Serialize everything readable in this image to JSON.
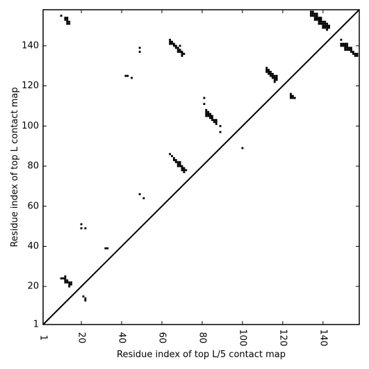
{
  "chart_data": {
    "type": "scatter",
    "title": "",
    "xlabel": "Residue index of top L/5 contact map",
    "ylabel": "Residue index of top L contact map",
    "xlim": [
      1,
      158
    ],
    "ylim": [
      1,
      158
    ],
    "xticks": [
      1,
      20,
      40,
      60,
      80,
      100,
      120,
      140
    ],
    "yticks": [
      1,
      20,
      40,
      60,
      80,
      100,
      120,
      140
    ],
    "grid": false,
    "diagonal_line": true,
    "marker_color": "#000000",
    "series": [
      {
        "points": [
          [
            10,
            24
          ],
          [
            11,
            24
          ],
          [
            12,
            24
          ],
          [
            12,
            23
          ],
          [
            13,
            23
          ],
          [
            13,
            22
          ],
          [
            12,
            22
          ],
          [
            14,
            22
          ],
          [
            14,
            21
          ],
          [
            15,
            22
          ],
          [
            15,
            21
          ],
          [
            14,
            20
          ],
          [
            12,
            25
          ],
          [
            21,
            15
          ],
          [
            22,
            14
          ],
          [
            22,
            13
          ],
          [
            20,
            51
          ],
          [
            20,
            49
          ],
          [
            22,
            49
          ],
          [
            32,
            39
          ],
          [
            33,
            39
          ],
          [
            49,
            66
          ],
          [
            51,
            64
          ],
          [
            64,
            86
          ],
          [
            65,
            85
          ],
          [
            66,
            84
          ],
          [
            66,
            83
          ],
          [
            67,
            83
          ],
          [
            67,
            82
          ],
          [
            68,
            82
          ],
          [
            68,
            81
          ],
          [
            69,
            82
          ],
          [
            69,
            81
          ],
          [
            69,
            80
          ],
          [
            70,
            80
          ],
          [
            70,
            79
          ],
          [
            71,
            79
          ],
          [
            71,
            78
          ],
          [
            72,
            78
          ],
          [
            71,
            77
          ],
          [
            70,
            78
          ],
          [
            68,
            80
          ],
          [
            81,
            114
          ],
          [
            81,
            111
          ],
          [
            82,
            108
          ],
          [
            82,
            107
          ],
          [
            82,
            106
          ],
          [
            82,
            105
          ],
          [
            83,
            107
          ],
          [
            83,
            106
          ],
          [
            83,
            105
          ],
          [
            84,
            106
          ],
          [
            84,
            105
          ],
          [
            84,
            104
          ],
          [
            85,
            105
          ],
          [
            85,
            104
          ],
          [
            85,
            103
          ],
          [
            86,
            103
          ],
          [
            86,
            102
          ],
          [
            87,
            103
          ],
          [
            87,
            102
          ],
          [
            87,
            101
          ],
          [
            89,
            100
          ],
          [
            89,
            97
          ],
          [
            100,
            89
          ],
          [
            42,
            125
          ],
          [
            43,
            125
          ],
          [
            45,
            124
          ],
          [
            49,
            139
          ],
          [
            49,
            137
          ],
          [
            64,
            143
          ],
          [
            64,
            142
          ],
          [
            64,
            141
          ],
          [
            65,
            142
          ],
          [
            65,
            141
          ],
          [
            66,
            141
          ],
          [
            66,
            140
          ],
          [
            67,
            140
          ],
          [
            67,
            139
          ],
          [
            68,
            139
          ],
          [
            68,
            138
          ],
          [
            68,
            137
          ],
          [
            69,
            140
          ],
          [
            69,
            138
          ],
          [
            69,
            137
          ],
          [
            70,
            137
          ],
          [
            70,
            136
          ],
          [
            70,
            135
          ],
          [
            71,
            136
          ],
          [
            112,
            129
          ],
          [
            112,
            128
          ],
          [
            112,
            127
          ],
          [
            113,
            128
          ],
          [
            113,
            127
          ],
          [
            113,
            126
          ],
          [
            114,
            127
          ],
          [
            114,
            126
          ],
          [
            114,
            125
          ],
          [
            115,
            126
          ],
          [
            115,
            125
          ],
          [
            115,
            124
          ],
          [
            116,
            125
          ],
          [
            116,
            124
          ],
          [
            116,
            123
          ],
          [
            116,
            122
          ],
          [
            117,
            125
          ],
          [
            117,
            124
          ],
          [
            117,
            123
          ],
          [
            124,
            116
          ],
          [
            124,
            115
          ],
          [
            124,
            114
          ],
          [
            125,
            115
          ],
          [
            125,
            114
          ],
          [
            126,
            114
          ],
          [
            10,
            155
          ],
          [
            12,
            154
          ],
          [
            12,
            153
          ],
          [
            13,
            154
          ],
          [
            13,
            153
          ],
          [
            13,
            152
          ],
          [
            13,
            151
          ],
          [
            14,
            152
          ],
          [
            14,
            151
          ],
          [
            134,
            157
          ],
          [
            134,
            156
          ],
          [
            134,
            155
          ],
          [
            135,
            157
          ],
          [
            135,
            156
          ],
          [
            135,
            155
          ],
          [
            136,
            156
          ],
          [
            136,
            155
          ],
          [
            136,
            154
          ],
          [
            136,
            153
          ],
          [
            137,
            156
          ],
          [
            137,
            155
          ],
          [
            137,
            154
          ],
          [
            137,
            153
          ],
          [
            138,
            154
          ],
          [
            138,
            153
          ],
          [
            138,
            152
          ],
          [
            138,
            151
          ],
          [
            139,
            154
          ],
          [
            139,
            153
          ],
          [
            139,
            152
          ],
          [
            139,
            151
          ],
          [
            140,
            152
          ],
          [
            140,
            151
          ],
          [
            140,
            150
          ],
          [
            140,
            149
          ],
          [
            141,
            152
          ],
          [
            141,
            151
          ],
          [
            141,
            150
          ],
          [
            141,
            149
          ],
          [
            142,
            151
          ],
          [
            142,
            150
          ],
          [
            142,
            149
          ],
          [
            142,
            148
          ],
          [
            143,
            150
          ],
          [
            143,
            149
          ],
          [
            149,
            143
          ],
          [
            149,
            141
          ],
          [
            149,
            140
          ],
          [
            150,
            141
          ],
          [
            150,
            140
          ],
          [
            151,
            141
          ],
          [
            151,
            140
          ],
          [
            151,
            139
          ],
          [
            151,
            138
          ],
          [
            152,
            141
          ],
          [
            152,
            140
          ],
          [
            152,
            139
          ],
          [
            152,
            138
          ],
          [
            153,
            139
          ],
          [
            153,
            138
          ],
          [
            154,
            139
          ],
          [
            154,
            138
          ],
          [
            154,
            137
          ],
          [
            155,
            137
          ],
          [
            155,
            136
          ],
          [
            156,
            136
          ],
          [
            156,
            135
          ],
          [
            157,
            136
          ],
          [
            157,
            135
          ]
        ]
      }
    ]
  }
}
